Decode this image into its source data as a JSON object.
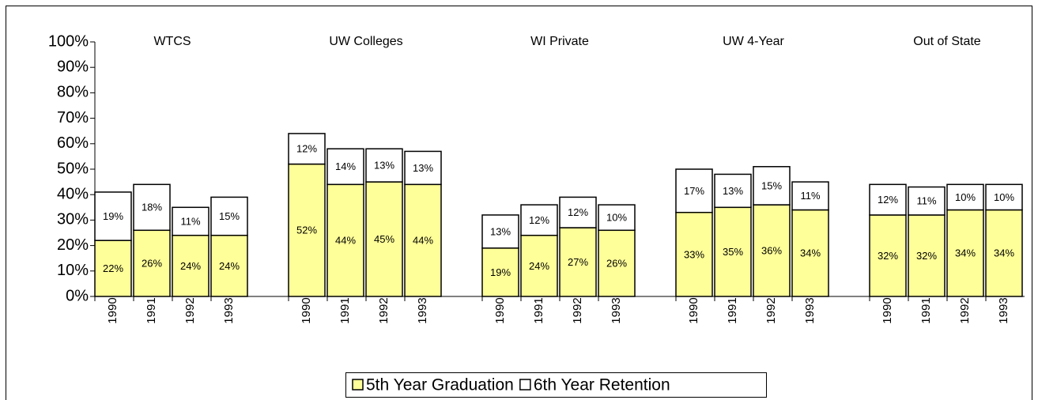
{
  "chart_data": {
    "type": "stacked-bar",
    "group_labels": [
      "WTCS",
      "UW Colleges",
      "WI Private",
      "UW 4-Year",
      "Out of State"
    ],
    "categories": [
      "1990",
      "1991",
      "1992",
      "1993",
      "1990",
      "1991",
      "1992",
      "1993",
      "1990",
      "1991",
      "1992",
      "1993",
      "1990",
      "1991",
      "1992",
      "1993",
      "1990",
      "1991",
      "1992",
      "1993"
    ],
    "series": [
      {
        "name": "5th Year Graduation",
        "color": "#ffff99",
        "values": [
          22,
          26,
          24,
          24,
          52,
          44,
          45,
          44,
          19,
          24,
          27,
          26,
          33,
          35,
          36,
          34,
          32,
          32,
          34,
          34
        ],
        "value_labels": [
          "22%",
          "26%",
          "24%",
          "24%",
          "52%",
          "44%",
          "45%",
          "44%",
          "19%",
          "24%",
          "27%",
          "26%",
          "33%",
          "35%",
          "36%",
          "34%",
          "32%",
          "32%",
          "34%",
          "34%"
        ]
      },
      {
        "name": "6th Year Retention",
        "color": "#ffffff",
        "values": [
          19,
          18,
          11,
          15,
          12,
          14,
          13,
          13,
          13,
          12,
          12,
          10,
          17,
          13,
          15,
          11,
          12,
          11,
          10,
          10
        ],
        "value_labels": [
          "19%",
          "18%",
          "11%",
          "15%",
          "12%",
          "14%",
          "13%",
          "13%",
          "13%",
          "12%",
          "12%",
          "10%",
          "17%",
          "13%",
          "15%",
          "11%",
          "12%",
          "11%",
          "10%",
          "10%"
        ]
      }
    ],
    "ylim": [
      0,
      100
    ],
    "yticks": [
      {
        "value": 0,
        "label": "0%"
      },
      {
        "value": 10,
        "label": "10%"
      },
      {
        "value": 20,
        "label": "20%"
      },
      {
        "value": 30,
        "label": "30%"
      },
      {
        "value": 40,
        "label": "40%"
      },
      {
        "value": 50,
        "label": "50%"
      },
      {
        "value": 60,
        "label": "60%"
      },
      {
        "value": 70,
        "label": "70%"
      },
      {
        "value": 80,
        "label": "80%"
      },
      {
        "value": 90,
        "label": "90%"
      },
      {
        "value": 100,
        "label": "100%"
      }
    ],
    "legend": "bottom"
  }
}
